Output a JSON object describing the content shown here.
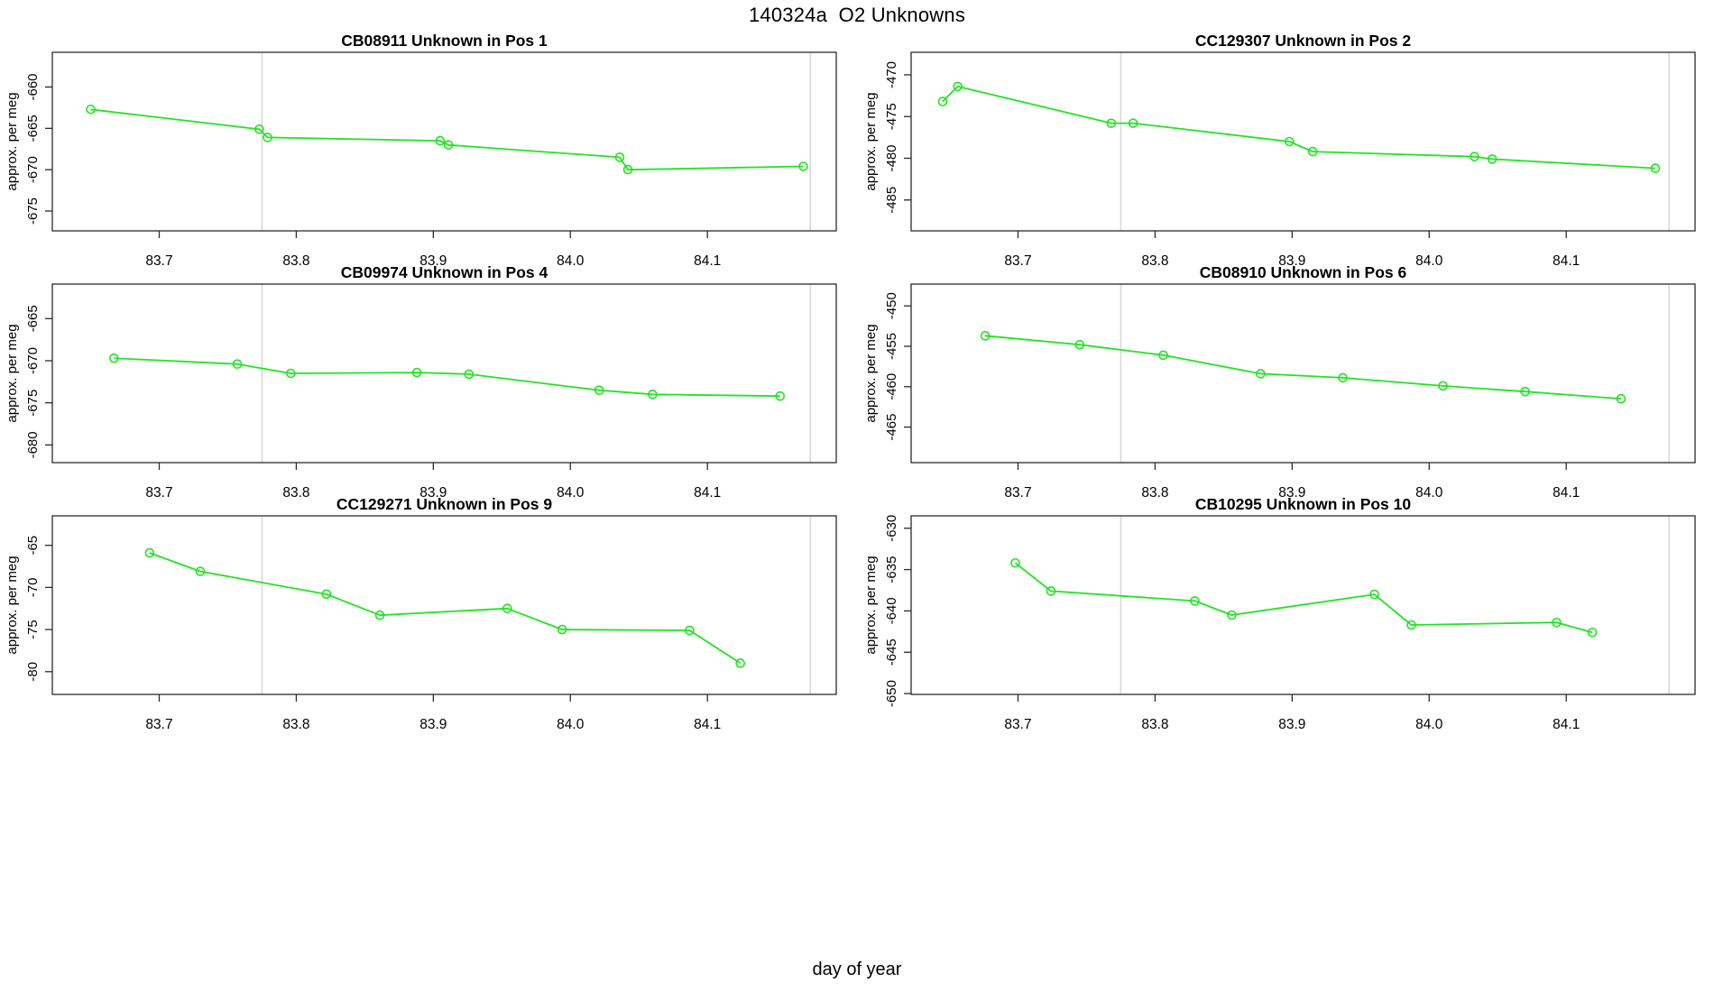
{
  "title": "140324a  O2 Unknowns",
  "xlabel": "day of year",
  "ylabel": "approx. per meg",
  "colors": {
    "line": "#21e521",
    "marker_stroke": "#21e521",
    "grid": "#d9d9d9",
    "axis": "#2b2b2b",
    "text": "#000000"
  },
  "x_axis": {
    "lim": [
      83.622,
      84.194
    ],
    "ticks": [
      83.7,
      83.8,
      83.9,
      84.0,
      84.1
    ],
    "gridlines": [
      83.775,
      84.175
    ]
  },
  "chart_data": [
    {
      "type": "line",
      "id": "CB08911",
      "position": "Pos 1",
      "title": "CB08911   Unknown in Pos 1",
      "ylabel": "approx. per meg",
      "ylim": [
        -677.4,
        -655.8
      ],
      "yticks": [
        -660,
        -665,
        -670,
        -675
      ],
      "x": [
        83.65,
        83.773,
        83.779,
        83.905,
        83.911,
        84.036,
        84.042,
        84.17
      ],
      "y": [
        -662.7,
        -665.1,
        -666.1,
        -666.5,
        -667.0,
        -668.5,
        -670.0,
        -669.6
      ]
    },
    {
      "type": "line",
      "id": "CC129307",
      "position": "Pos 2",
      "title": "CC129307   Unknown in Pos 2",
      "ylabel": "approx. per meg",
      "ylim": [
        -488.7,
        -467.3
      ],
      "yticks": [
        -470,
        -475,
        -480,
        -485
      ],
      "x": [
        83.645,
        83.656,
        83.768,
        83.784,
        83.898,
        83.915,
        84.033,
        84.046,
        84.165
      ],
      "y": [
        -473.2,
        -471.4,
        -475.8,
        -475.8,
        -478.0,
        -479.2,
        -479.8,
        -480.1,
        -481.2
      ]
    },
    {
      "type": "line",
      "id": "CB09974",
      "position": "Pos 4",
      "title": "CB09974   Unknown in Pos 4",
      "ylabel": "approx. per meg",
      "ylim": [
        -682.1,
        -660.9
      ],
      "yticks": [
        -665,
        -670,
        -675,
        -680
      ],
      "x": [
        83.667,
        83.757,
        83.796,
        83.888,
        83.926,
        84.021,
        84.06,
        84.153
      ],
      "y": [
        -669.7,
        -670.4,
        -671.5,
        -671.4,
        -671.6,
        -673.5,
        -674.0,
        -674.2
      ]
    },
    {
      "type": "line",
      "id": "CB08910",
      "position": "Pos 6",
      "title": "CB08910   Unknown in Pos 6",
      "ylabel": "approx. per meg",
      "ylim": [
        -469.4,
        -447.3
      ],
      "yticks": [
        -450,
        -455,
        -460,
        -465
      ],
      "x": [
        83.676,
        83.745,
        83.806,
        83.877,
        83.937,
        84.01,
        84.07,
        84.14
      ],
      "y": [
        -453.7,
        -454.8,
        -456.1,
        -458.4,
        -458.9,
        -459.9,
        -460.6,
        -461.5
      ]
    },
    {
      "type": "line",
      "id": "CC129271",
      "position": "Pos 9",
      "title": "CC129271   Unknown in Pos 9",
      "ylabel": "approx. per meg",
      "ylim": [
        -82.7,
        -61.5
      ],
      "yticks": [
        -65,
        -70,
        -75,
        -80
      ],
      "x": [
        83.693,
        83.73,
        83.822,
        83.861,
        83.954,
        83.994,
        84.087,
        84.124
      ],
      "y": [
        -65.9,
        -68.1,
        -70.8,
        -73.3,
        -72.5,
        -75.0,
        -75.1,
        -79.0
      ]
    },
    {
      "type": "line",
      "id": "CB10295",
      "position": "Pos 10",
      "title": "CB10295   Unknown in Pos 10",
      "ylabel": "approx. per meg",
      "ylim": [
        -650.1,
        -628.5
      ],
      "yticks": [
        -630,
        -635,
        -640,
        -645,
        -650
      ],
      "x": [
        83.698,
        83.724,
        83.829,
        83.856,
        83.96,
        83.987,
        84.093,
        84.119
      ],
      "y": [
        -634.2,
        -637.6,
        -638.8,
        -640.5,
        -638.0,
        -641.7,
        -641.4,
        -642.6
      ]
    }
  ]
}
